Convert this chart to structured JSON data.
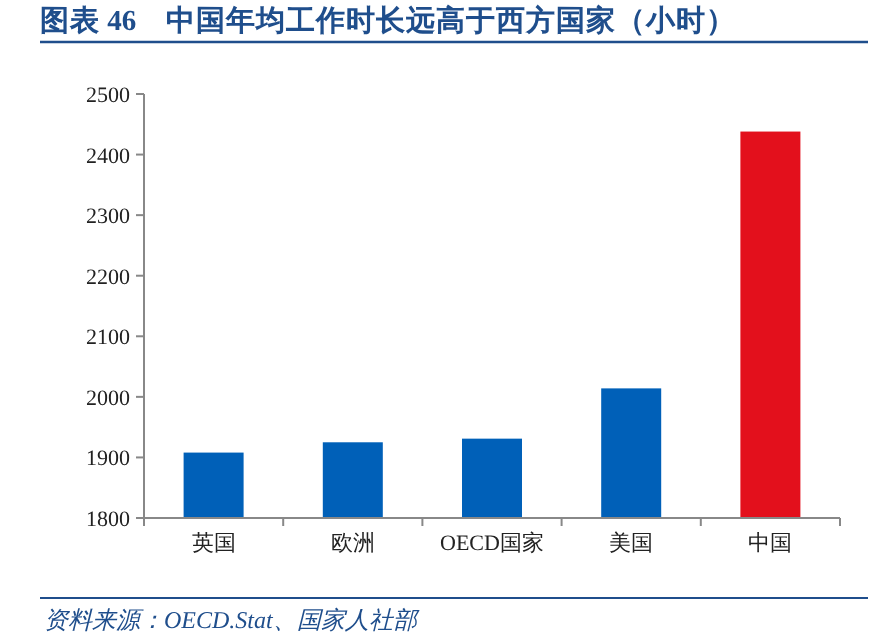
{
  "chart_data": {
    "type": "bar",
    "title": "图表 46　中国年均工作时长远高于西方国家（小时）",
    "categories": [
      "英国",
      "欧洲",
      "OECD国家",
      "美国",
      "中国"
    ],
    "values": [
      1908,
      1925,
      1931,
      2014,
      2438
    ],
    "colors": [
      "#0060b8",
      "#0060b8",
      "#0060b8",
      "#0060b8",
      "#e3101c"
    ],
    "ylim": [
      1800,
      2500
    ],
    "yticks": [
      1800,
      1900,
      2000,
      2100,
      2200,
      2300,
      2400,
      2500
    ],
    "grid": false,
    "annotations": [
      "资料来源：OECD.Stat、国家人社部"
    ]
  }
}
